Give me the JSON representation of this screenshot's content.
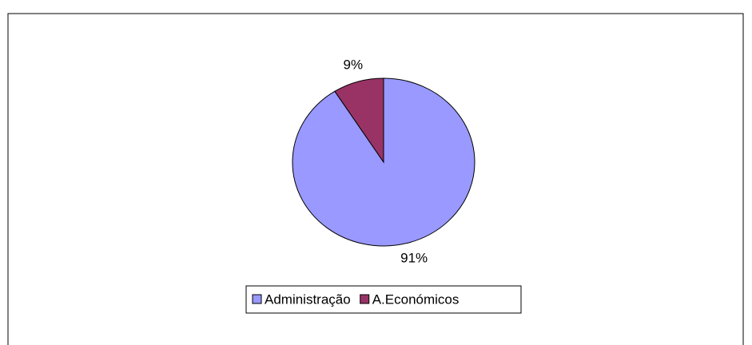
{
  "chart_data": {
    "type": "pie",
    "categories": [
      "Administração",
      "A.Económicos"
    ],
    "values": [
      91,
      9
    ],
    "value_labels": [
      "91%",
      "9%"
    ],
    "colors": [
      "#9999ff",
      "#993366"
    ],
    "legend": "bottom"
  }
}
